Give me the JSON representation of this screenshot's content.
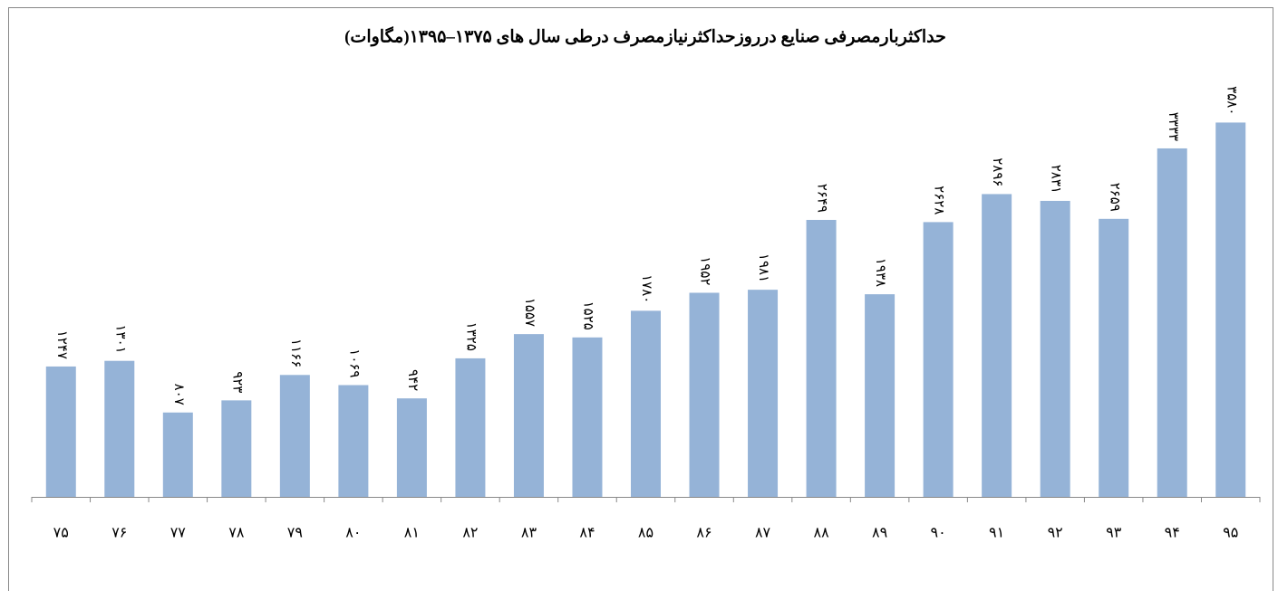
{
  "chart_data": {
    "type": "bar",
    "title": "حداکثربارمصرفی صنایع درروزحداکثرنیازمصرف درطی سال های ۱۳۷۵–۱۳۹۵(مگاوات)",
    "categories": [
      "۷۵",
      "۷۶",
      "۷۷",
      "۷۸",
      "۷۹",
      "۸۰",
      "۸۱",
      "۸۲",
      "۸۳",
      "۸۴",
      "۸۵",
      "۸۶",
      "۸۷",
      "۸۸",
      "۸۹",
      "۹۰",
      "۹۱",
      "۹۲",
      "۹۳",
      "۹۴",
      "۹۵"
    ],
    "values": [
      1247,
      1301,
      807,
      923,
      1166,
      1069,
      942,
      1325,
      1557,
      1525,
      1780,
      1952,
      1981,
      2649,
      1938,
      2628,
      2896,
      2831,
      2659,
      3333,
      3580
    ],
    "value_labels": [
      "۱۲۴۷",
      "۱۳۰۱",
      "۸۰۷",
      "۹۲۳",
      "۱۱۶۶",
      "۱۰۶۹",
      "۹۴۲",
      "۱۳۲۵",
      "۱۵۵۷",
      "۱۵۲۵",
      "۱۷۸۰",
      "۱۹۵۲",
      "۱۹۸۱",
      "۲۶۴۹",
      "۱۹۳۸",
      "۲۶۲۸",
      "۲۸۹۶",
      "۲۸۳۱",
      "۲۶۵۹",
      "۳۳۳۳",
      "۳۵۸۰"
    ],
    "color": "#95b3d7",
    "ylim": [
      0,
      3800
    ]
  }
}
